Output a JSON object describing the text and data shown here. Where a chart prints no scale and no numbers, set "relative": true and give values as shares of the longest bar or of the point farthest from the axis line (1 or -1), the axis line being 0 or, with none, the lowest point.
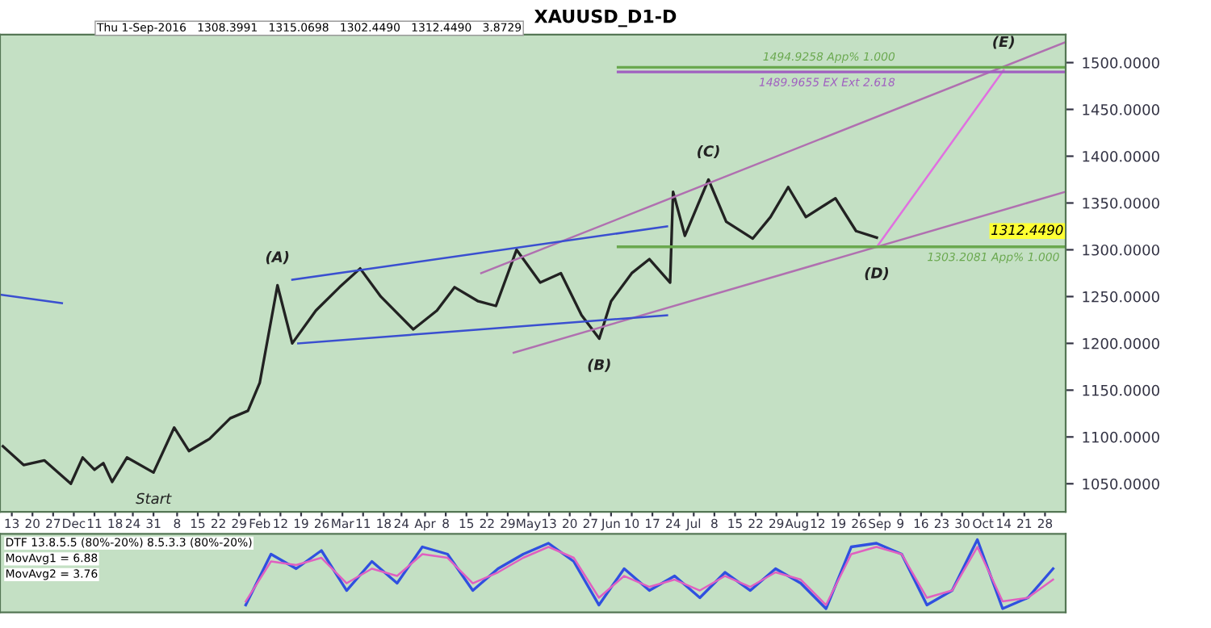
{
  "chart_data": [
    {
      "type": "line",
      "title": "XAUUSD_D1-D",
      "subtitle": "Thu 1-Sep-2016   1308.3991   1315.0698   1302.4490   1312.4490   3.8729",
      "xlim": [
        "2015-11-09",
        "2016-11-04"
      ],
      "ylim": [
        1020,
        1530
      ],
      "yticks": [
        {
          "value": 1050,
          "label": "1050.0000"
        },
        {
          "value": 1100,
          "label": "1100.0000"
        },
        {
          "value": 1150,
          "label": "1150.0000"
        },
        {
          "value": 1200,
          "label": "1200.0000"
        },
        {
          "value": 1250,
          "label": "1250.0000"
        },
        {
          "value": 1300,
          "label": "1300.0000"
        },
        {
          "value": 1350,
          "label": "1350.0000"
        },
        {
          "value": 1400,
          "label": "1400.0000"
        },
        {
          "value": 1450,
          "label": "1450.0000"
        },
        {
          "value": 1500,
          "label": "1500.0000"
        }
      ],
      "xticks": [
        {
          "value": "2015-11-13",
          "label": "13"
        },
        {
          "value": "2015-11-20",
          "label": "20"
        },
        {
          "value": "2015-11-27",
          "label": "27"
        },
        {
          "value": "2015-12-04",
          "label": "Dec"
        },
        {
          "value": "2015-12-11",
          "label": "11"
        },
        {
          "value": "2015-12-18",
          "label": "18"
        },
        {
          "value": "2015-12-24",
          "label": "24"
        },
        {
          "value": "2015-12-31",
          "label": "31"
        },
        {
          "value": "2016-01-08",
          "label": "8"
        },
        {
          "value": "2016-01-15",
          "label": "15"
        },
        {
          "value": "2016-01-22",
          "label": "22"
        },
        {
          "value": "2016-01-29",
          "label": "29"
        },
        {
          "value": "2016-02-05",
          "label": "Feb"
        },
        {
          "value": "2016-02-12",
          "label": "12"
        },
        {
          "value": "2016-02-19",
          "label": "19"
        },
        {
          "value": "2016-02-26",
          "label": "26"
        },
        {
          "value": "2016-03-04",
          "label": "Mar"
        },
        {
          "value": "2016-03-11",
          "label": "11"
        },
        {
          "value": "2016-03-18",
          "label": "18"
        },
        {
          "value": "2016-03-24",
          "label": "24"
        },
        {
          "value": "2016-04-01",
          "label": "Apr"
        },
        {
          "value": "2016-04-08",
          "label": "8"
        },
        {
          "value": "2016-04-15",
          "label": "15"
        },
        {
          "value": "2016-04-22",
          "label": "22"
        },
        {
          "value": "2016-04-29",
          "label": "29"
        },
        {
          "value": "2016-05-06",
          "label": "May"
        },
        {
          "value": "2016-05-13",
          "label": "13"
        },
        {
          "value": "2016-05-20",
          "label": "20"
        },
        {
          "value": "2016-05-27",
          "label": "27"
        },
        {
          "value": "2016-06-03",
          "label": "Jun"
        },
        {
          "value": "2016-06-10",
          "label": "10"
        },
        {
          "value": "2016-06-17",
          "label": "17"
        },
        {
          "value": "2016-06-24",
          "label": "24"
        },
        {
          "value": "2016-07-01",
          "label": "Jul"
        },
        {
          "value": "2016-07-08",
          "label": "8"
        },
        {
          "value": "2016-07-15",
          "label": "15"
        },
        {
          "value": "2016-07-22",
          "label": "22"
        },
        {
          "value": "2016-07-29",
          "label": "29"
        },
        {
          "value": "2016-08-05",
          "label": "Aug"
        },
        {
          "value": "2016-08-12",
          "label": "12"
        },
        {
          "value": "2016-08-19",
          "label": "19"
        },
        {
          "value": "2016-08-26",
          "label": "26"
        },
        {
          "value": "2016-09-02",
          "label": "Sep"
        },
        {
          "value": "2016-09-09",
          "label": "9"
        },
        {
          "value": "2016-09-16",
          "label": "16"
        },
        {
          "value": "2016-09-23",
          "label": "23"
        },
        {
          "value": "2016-09-30",
          "label": "30"
        },
        {
          "value": "2016-10-07",
          "label": "Oct"
        },
        {
          "value": "2016-10-14",
          "label": "14"
        },
        {
          "value": "2016-10-21",
          "label": "21"
        },
        {
          "value": "2016-10-28",
          "label": "28"
        }
      ],
      "series": [
        {
          "color": "#222222",
          "x": [
            "2015-11-10",
            "2015-11-17",
            "2015-11-24",
            "2015-12-03",
            "2015-12-07",
            "2015-12-11",
            "2015-12-14",
            "2015-12-17",
            "2015-12-22",
            "2015-12-31",
            "2016-01-07",
            "2016-01-12",
            "2016-01-19",
            "2016-01-26",
            "2016-02-01",
            "2016-02-05",
            "2016-02-11",
            "2016-02-16",
            "2016-02-24",
            "2016-03-03",
            "2016-03-10",
            "2016-03-17",
            "2016-03-28",
            "2016-04-05",
            "2016-04-11",
            "2016-04-19",
            "2016-04-25",
            "2016-05-02",
            "2016-05-10",
            "2016-05-17",
            "2016-05-24",
            "2016-05-30",
            "2016-06-03",
            "2016-06-10",
            "2016-06-16",
            "2016-06-23",
            "2016-06-24",
            "2016-06-28",
            "2016-07-06",
            "2016-07-12",
            "2016-07-21",
            "2016-07-27",
            "2016-08-02",
            "2016-08-08",
            "2016-08-18",
            "2016-08-25",
            "2016-09-01"
          ],
          "values": [
            1090,
            1070,
            1075,
            1050,
            1078,
            1065,
            1072,
            1052,
            1078,
            1062,
            1110,
            1085,
            1098,
            1120,
            1128,
            1158,
            1262,
            1200,
            1235,
            1260,
            1280,
            1250,
            1215,
            1235,
            1260,
            1245,
            1240,
            1300,
            1265,
            1275,
            1230,
            1205,
            1245,
            1275,
            1290,
            1265,
            1362,
            1315,
            1375,
            1330,
            1312,
            1335,
            1367,
            1335,
            1355,
            1320,
            1313
          ]
        },
        {
          "color": "#b070b0",
          "x": [
            "2016-04-20",
            "2016-11-04"
          ],
          "values": [
            1275,
            1522
          ]
        },
        {
          "color": "#b070b0",
          "x": [
            "2016-05-01",
            "2016-11-04"
          ],
          "values": [
            1190,
            1362
          ]
        },
        {
          "color": "#e070e0",
          "x": [
            "2016-09-01",
            "2016-10-14"
          ],
          "values": [
            1303,
            1492
          ]
        },
        {
          "color": "#3a4fd0",
          "x": [
            "2016-02-16",
            "2016-06-22"
          ],
          "values": [
            1268,
            1325
          ]
        },
        {
          "color": "#3a4fd0",
          "x": [
            "2016-02-18",
            "2016-06-22"
          ],
          "values": [
            1200,
            1230
          ]
        },
        {
          "color": "#3a4fd0",
          "x": [
            "2015-11-09",
            "2015-11-30"
          ],
          "values": [
            1252,
            1243
          ]
        }
      ],
      "ref_lines": [
        {
          "axis": "y",
          "value": 1494.9258,
          "label": "1494.9258 App% 1.000",
          "color": "#6aa84f"
        },
        {
          "axis": "y",
          "value": 1489.9655,
          "label": "1489.9655 EX Ext 2.618",
          "color": "#a060c0"
        },
        {
          "axis": "y",
          "value": 1303.2081,
          "label": "1303.2081 App% 1.000",
          "color": "#6aa84f"
        }
      ],
      "annotations": [
        {
          "text": "(A)",
          "x": "2016-02-11",
          "y": 1262
        },
        {
          "text": "(B)",
          "x": "2016-05-30",
          "y": 1205
        },
        {
          "text": "(C)",
          "x": "2016-07-06",
          "y": 1375
        },
        {
          "text": "(D)",
          "x": "2016-09-01",
          "y": 1303
        },
        {
          "text": "(E)",
          "x": "2016-10-14",
          "y": 1492
        },
        {
          "text": "Start",
          "x": "2015-12-31",
          "y": 1062
        },
        "1312.4490"
      ],
      "marker": "none",
      "line_style": "solid"
    },
    {
      "type": "line",
      "relative": true,
      "categories": [
        null,
        null,
        null,
        null,
        null,
        null,
        null,
        null,
        null,
        null,
        null,
        null,
        null,
        null,
        null,
        null,
        null,
        null,
        null,
        null,
        null,
        null,
        null,
        null,
        null,
        null,
        null,
        null,
        null,
        null,
        null,
        null,
        null
      ],
      "series": [
        {
          "color": "#3050e0",
          "values": [
            0.1,
            0.8,
            0.6,
            0.85,
            0.3,
            0.7,
            0.4,
            0.9,
            0.8,
            0.3,
            0.6,
            0.8,
            0.95,
            0.7,
            0.1,
            0.6,
            0.3,
            0.5,
            0.2,
            0.55,
            0.3,
            0.6,
            0.4,
            0.05,
            0.9,
            0.95,
            0.8,
            0.1,
            0.3,
            1.0,
            0.05,
            0.2,
            0.6
          ]
        },
        {
          "color": "#e060c0",
          "values": [
            0.15,
            0.7,
            0.65,
            0.75,
            0.4,
            0.6,
            0.5,
            0.8,
            0.75,
            0.4,
            0.55,
            0.75,
            0.9,
            0.75,
            0.2,
            0.5,
            0.35,
            0.45,
            0.3,
            0.5,
            0.35,
            0.55,
            0.45,
            0.1,
            0.8,
            0.9,
            0.8,
            0.2,
            0.3,
            0.9,
            0.15,
            0.2,
            0.45
          ]
        }
      ],
      "annotations": [
        "DTF 13.8.5.5 (80%-20%) 8.5.3.3 (80%-20%)",
        "MovAvg1 = 6.88",
        "MovAvg2 = 3.76"
      ],
      "marker": "none",
      "line_style": "solid"
    }
  ]
}
